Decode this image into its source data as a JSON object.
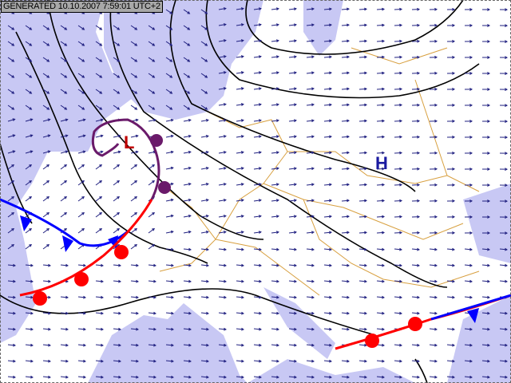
{
  "header": {
    "generated": "GENERATED 10.10.2007 7:59:01 UTC+2"
  },
  "pressure_centers": [
    {
      "label": "L",
      "type": "low"
    },
    {
      "label": "H",
      "type": "high"
    }
  ],
  "colors": {
    "sea": "#c8c8f4",
    "land": "#ffffff",
    "borders": "#d8a040",
    "isobars": "#000000",
    "wind_arrows": "#202080",
    "cold_front": "#0000ff",
    "warm_front": "#ff0000",
    "occluded_front": "#6a1a6a",
    "low_label": "#c00000",
    "high_label": "#1a1aa0"
  },
  "fronts": [
    "cold",
    "warm",
    "occluded"
  ]
}
